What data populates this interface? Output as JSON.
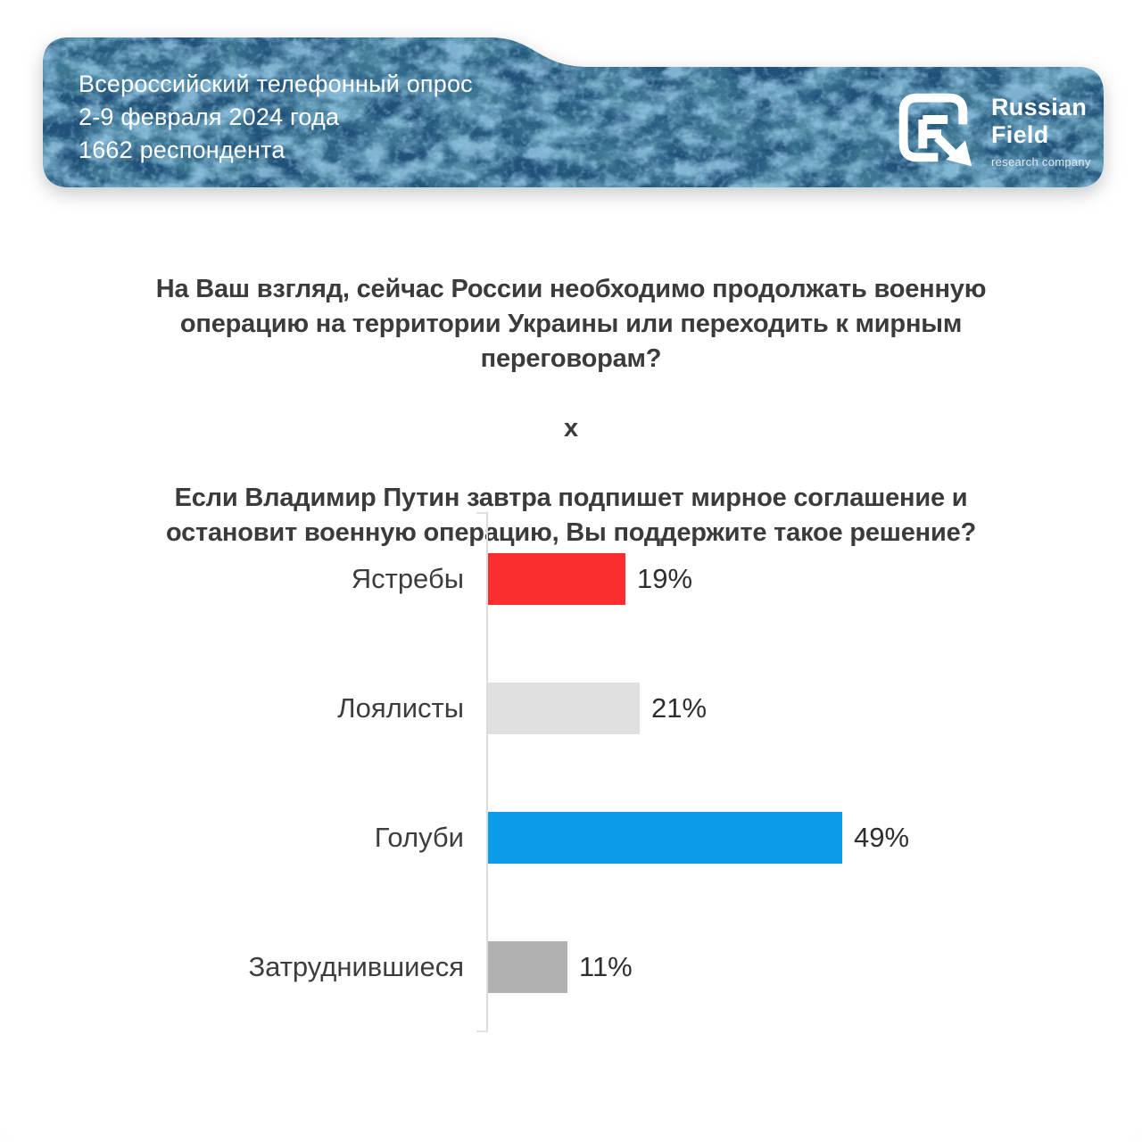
{
  "header": {
    "line1": "Всероссийский телефонный опрос",
    "line2": "2-9 февраля 2024 года",
    "line3": "1662 респондента",
    "banner_base_color": "#205178",
    "logo": {
      "title_line1": "Russian",
      "title_line2": "Field",
      "subtitle": "research company"
    }
  },
  "question": {
    "part1": "На Ваш взгляд, сейчас России необходимо продолжать военную\nоперацию на территории Украины или переходить к мирным\nпереговорам?",
    "separator": "х",
    "part2": "Если Владимир Путин завтра подпишет мирное соглашение и\nостановит военную операцию, Вы поддержите такое решение?"
  },
  "chart_data": {
    "type": "bar",
    "orientation": "horizontal",
    "categories": [
      "Ястребы",
      "Лоялисты",
      "Голуби",
      "Затруднившиеся"
    ],
    "values": [
      19,
      21,
      49,
      11
    ],
    "value_labels": [
      "19%",
      "21%",
      "49%",
      "11%"
    ],
    "bar_colors": [
      "#fa2e2e",
      "#e0e0e0",
      "#0a9ce9",
      "#b1b1b1"
    ],
    "xlim": [
      0,
      60
    ],
    "baseline_color": "#dcdcdc",
    "grid": false,
    "legend": "none"
  }
}
